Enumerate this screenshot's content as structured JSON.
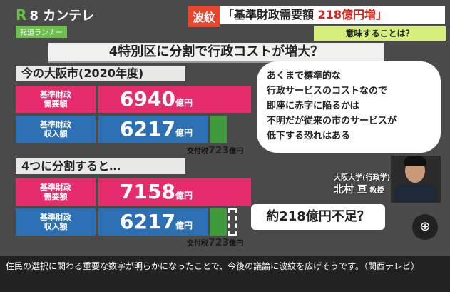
{
  "broadcast": {
    "logo_mark": "R",
    "logo_text": "8 カンテレ",
    "program": "報道ランナー",
    "tag": "波紋",
    "headline_main": "「基準財政需要額",
    "headline_value": "218億円増」",
    "subheadline": "意味することは？"
  },
  "slide": {
    "title": "4特別区に分割で行政コストが増大？",
    "section1": "今の大阪市(2020年度)",
    "section2": "4つに分割すると…",
    "current": {
      "demand_label": "基準財政\n需要額",
      "demand_value": "6940",
      "income_label": "基準財政\n収入額",
      "income_value": "6217",
      "kofu_label": "交付税",
      "kofu_value": "723",
      "unit": "億円"
    },
    "split": {
      "demand_label": "基準財政\n需要額",
      "demand_value": "7158",
      "income_label": "基準財政\n収入額",
      "income_value": "6217",
      "kofu_label": "交付税",
      "kofu_value": "723",
      "unit": "億円"
    },
    "shortfall": "約218億円不足？",
    "quote": "あくまで標準的な\n行政サービスのコストなので\n即座に赤字に陥るかは\n不明だが従来の市のサービスが\n低下する恐れはある",
    "speaker_affiliation": "大阪大学(行政学)",
    "speaker_name": "北村 亘",
    "speaker_title": "教授"
  },
  "caption": "住民の選択に関わる重要な数字が明らかになったことで、今後の議論に波紋を広げそうです。（関西テレビ）",
  "icons": {
    "zoom": "magnifier-plus-icon"
  }
}
